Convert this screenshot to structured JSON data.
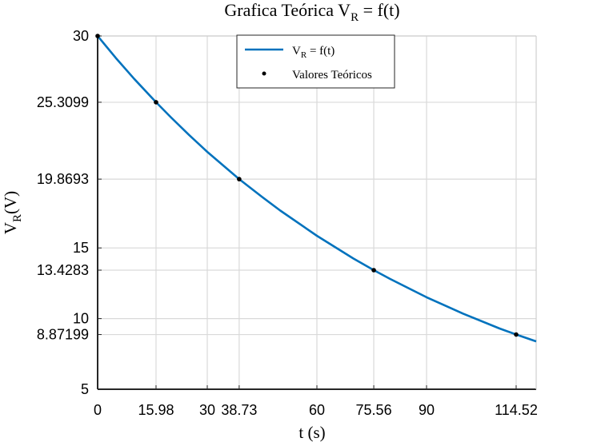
{
  "chart_data": {
    "type": "line",
    "title": {
      "main": "Grafica Teórica V",
      "sub": "R",
      "rest": " = f(t)"
    },
    "xlabel": "t (s)",
    "ylabel": {
      "main": "V",
      "sub": "R",
      "rest": "(V)"
    },
    "xlim": [
      0,
      120
    ],
    "ylim": [
      5,
      30
    ],
    "grid": true,
    "legend_position": "top-center",
    "x_ticks": [
      {
        "value": 0,
        "label": "0"
      },
      {
        "value": 15.98,
        "label": "15.98"
      },
      {
        "value": 30,
        "label": "30"
      },
      {
        "value": 38.73,
        "label": "38.73"
      },
      {
        "value": 60,
        "label": "60"
      },
      {
        "value": 75.56,
        "label": "75.56"
      },
      {
        "value": 90,
        "label": "90"
      },
      {
        "value": 114.52,
        "label": "114.52"
      }
    ],
    "y_ticks": [
      {
        "value": 5,
        "label": "5"
      },
      {
        "value": 8.87199,
        "label": "8.87199"
      },
      {
        "value": 10,
        "label": "10"
      },
      {
        "value": 13.4283,
        "label": "13.4283"
      },
      {
        "value": 15,
        "label": "15"
      },
      {
        "value": 19.8693,
        "label": "19.8693"
      },
      {
        "value": 25.3099,
        "label": "25.3099"
      },
      {
        "value": 30,
        "label": "30"
      }
    ],
    "series": [
      {
        "name": {
          "main": "V",
          "sub": "R",
          "rest": " = f(t)"
        },
        "kind": "curve",
        "color": "#0072bd",
        "x": [
          0,
          5,
          10,
          15.98,
          20,
          25,
          30,
          38.73,
          45,
          50,
          60,
          70,
          75.56,
          80,
          90,
          100,
          110,
          114.52,
          120
        ],
        "y": [
          30,
          28.44,
          26.96,
          25.31,
          24.26,
          23.0,
          21.8,
          19.87,
          18.61,
          17.64,
          15.86,
          14.25,
          13.43,
          12.81,
          11.51,
          10.35,
          9.3,
          8.872,
          8.39
        ]
      },
      {
        "name": "Valores Teóricos",
        "kind": "points",
        "color": "#000000",
        "x": [
          0,
          15.98,
          38.73,
          75.56,
          114.52
        ],
        "y": [
          30,
          25.3099,
          19.8693,
          13.4283,
          8.87199
        ]
      }
    ]
  }
}
